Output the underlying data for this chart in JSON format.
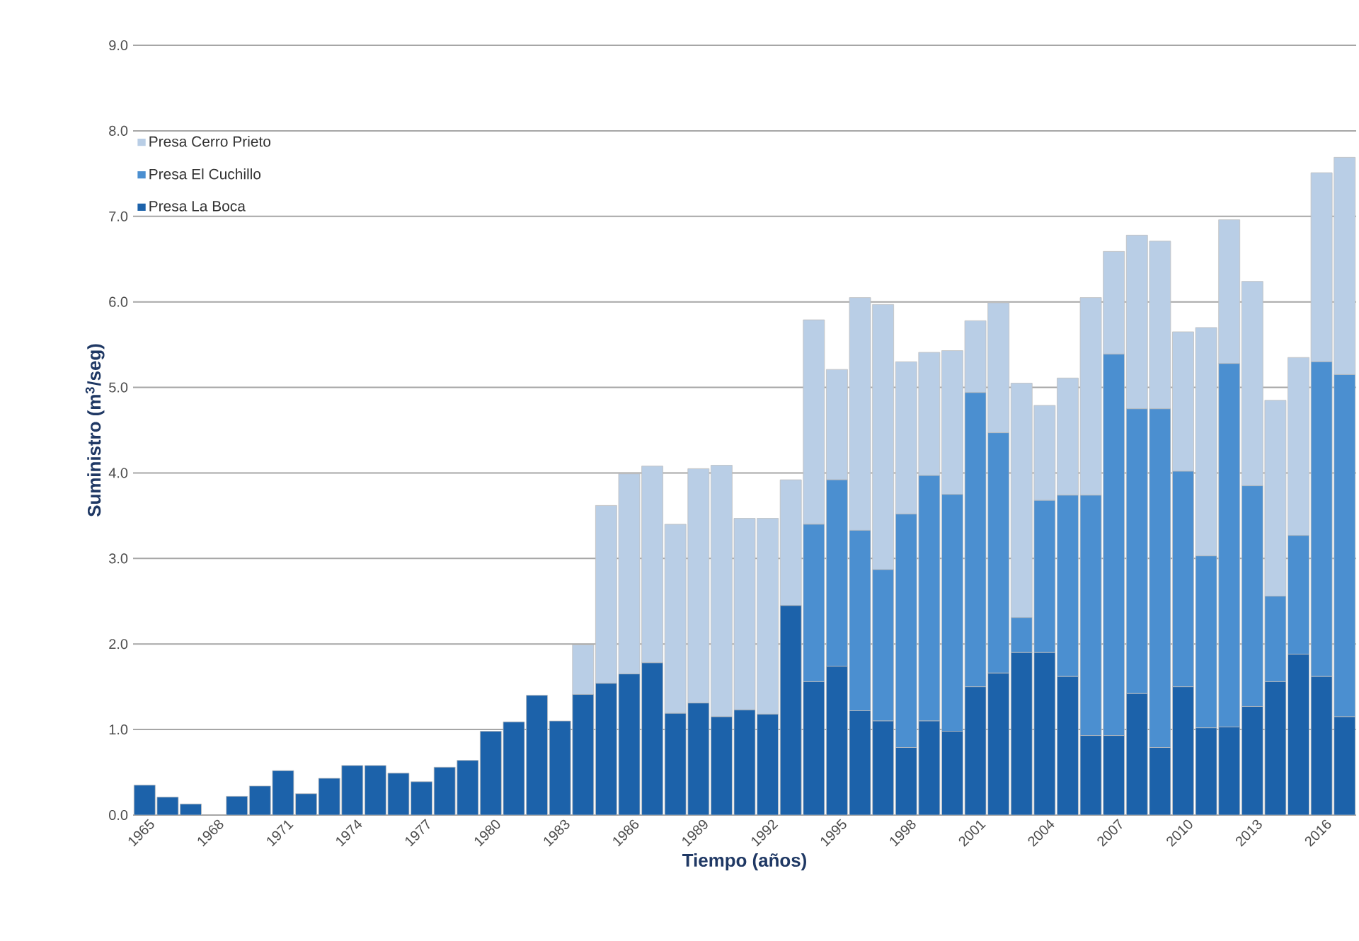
{
  "chart_data": {
    "type": "bar",
    "stacked": true,
    "xlabel": "Tiempo (años)",
    "ylabel": "Suministro (m$^{3}$/seg)",
    "categories": [
      "1965",
      null,
      null,
      "1968",
      null,
      null,
      "1971",
      null,
      null,
      "1974",
      null,
      null,
      "1977",
      null,
      null,
      "1980",
      null,
      null,
      "1983",
      null,
      null,
      "1986",
      null,
      null,
      "1989",
      null,
      null,
      "1992",
      null,
      null,
      "1995",
      null,
      null,
      "1998",
      null,
      null,
      "2001",
      null,
      null,
      "2004",
      null,
      null,
      "2007",
      null,
      null,
      "2010",
      null,
      null,
      "2013",
      null,
      null,
      "2016",
      null
    ],
    "series": [
      {
        "name": "Presa La Boca",
        "color": "#1c62aa",
        "values": [
          0.35,
          0.21,
          0.13,
          0,
          0.22,
          0.34,
          0.52,
          0.25,
          0.43,
          0.58,
          0.58,
          0.49,
          0.39,
          0.56,
          0.64,
          0.98,
          1.09,
          1.4,
          1.1,
          1.41,
          1.54,
          1.65,
          1.78,
          1.19,
          1.31,
          1.15,
          1.23,
          1.18,
          2.45,
          1.56,
          1.74,
          1.22,
          1.1,
          0.79,
          1.1,
          0.98,
          1.5,
          1.66,
          1.9,
          1.9,
          1.62,
          0.93,
          0.93,
          1.42,
          0.79,
          1.5,
          1.02,
          1.03,
          1.27,
          1.56,
          1.88,
          1.62,
          1.15
        ]
      },
      {
        "name": "Presa El Cuchillo",
        "color": "#4b8fd0",
        "values": [
          0,
          0,
          0,
          0,
          0,
          0,
          0,
          0,
          0,
          0,
          0,
          0,
          0,
          0,
          0,
          0,
          0,
          0,
          0,
          0,
          0,
          0,
          0,
          0,
          0,
          0,
          0,
          0,
          0,
          1.84,
          2.18,
          2.11,
          1.77,
          2.73,
          2.87,
          2.77,
          3.44,
          2.81,
          0.41,
          1.78,
          2.12,
          2.81,
          4.46,
          3.33,
          3.96,
          2.52,
          2.01,
          4.25,
          2.58,
          1.0,
          1.39,
          3.68,
          4.0
        ]
      },
      {
        "name": "Presa Cerro Prieto",
        "color": "#b9cee6",
        "values": [
          0,
          0,
          0,
          0,
          0,
          0,
          0,
          0,
          0,
          0,
          0,
          0,
          0,
          0,
          0,
          0,
          0,
          0,
          0,
          0.58,
          2.08,
          2.34,
          2.3,
          2.21,
          2.74,
          2.94,
          2.24,
          2.29,
          1.47,
          2.39,
          1.29,
          2.72,
          3.1,
          1.78,
          1.44,
          1.68,
          0.84,
          1.52,
          2.74,
          1.11,
          1.37,
          2.31,
          1.2,
          2.03,
          1.96,
          1.63,
          2.67,
          1.68,
          2.39,
          2.29,
          2.08,
          2.21,
          2.54
        ]
      }
    ],
    "ylim": [
      0,
      9
    ],
    "yticks": [
      {
        "value": 0,
        "label": "0.0"
      },
      {
        "value": 1,
        "label": "1.0"
      },
      {
        "value": 2,
        "label": "2.0"
      },
      {
        "value": 3,
        "label": "3.0"
      },
      {
        "value": 4,
        "label": "4.0"
      },
      {
        "value": 5,
        "label": "5.0"
      },
      {
        "value": 6,
        "label": "6.0"
      },
      {
        "value": 7,
        "label": "7.0"
      },
      {
        "value": 8,
        "label": "8.0"
      },
      {
        "value": 9,
        "label": "9.0"
      }
    ],
    "grid": "y",
    "legend": "top left"
  }
}
